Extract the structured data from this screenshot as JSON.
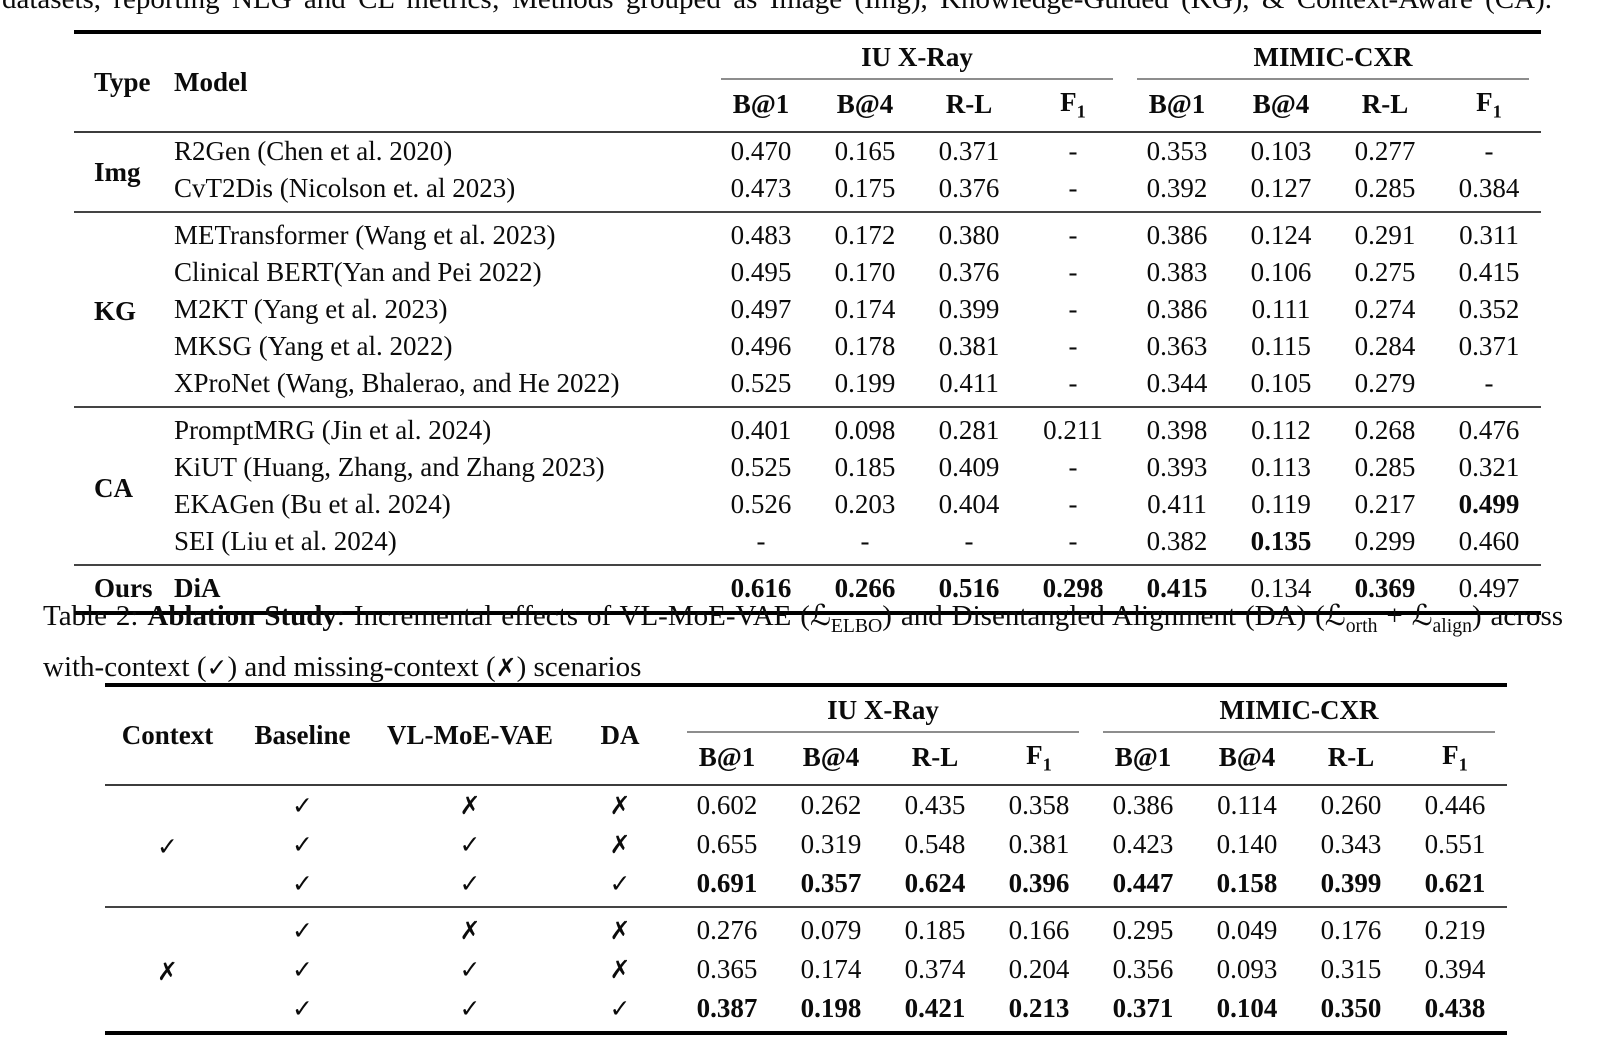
{
  "intro_text": "datasets, reporting NLG and CL metrics; Methods grouped as Image (Img), Knowledge-Guided (KG), & Context-Aware (CA).",
  "datasets": {
    "iu": "IU X-Ray",
    "mimic": "MIMIC-CXR"
  },
  "metrics": {
    "b1": "B@1",
    "b4": "B@4",
    "rl": "R-L",
    "f": "F",
    "f_sub": "1"
  },
  "sym": {
    "check": "✓",
    "cross": "✗"
  },
  "table1": {
    "col_type": "Type",
    "col_model": "Model",
    "sections": [
      {
        "type": "Img",
        "rows": [
          {
            "model": "R2Gen (Chen et al. 2020)",
            "values": [
              "0.470",
              "0.165",
              "0.371",
              "-",
              "0.353",
              "0.103",
              "0.277",
              "-"
            ],
            "bold": []
          },
          {
            "model": "CvT2Dis (Nicolson et. al 2023)",
            "values": [
              "0.473",
              "0.175",
              "0.376",
              "-",
              "0.392",
              "0.127",
              "0.285",
              "0.384"
            ],
            "bold": []
          }
        ]
      },
      {
        "type": "KG",
        "rows": [
          {
            "model": "METransformer (Wang et al. 2023)",
            "values": [
              "0.483",
              "0.172",
              "0.380",
              "-",
              "0.386",
              "0.124",
              "0.291",
              "0.311"
            ],
            "bold": []
          },
          {
            "model": "Clinical BERT(Yan and Pei 2022)",
            "values": [
              "0.495",
              "0.170",
              "0.376",
              "-",
              "0.383",
              "0.106",
              "0.275",
              "0.415"
            ],
            "bold": []
          },
          {
            "model": "M2KT (Yang et al. 2023)",
            "values": [
              "0.497",
              "0.174",
              "0.399",
              "-",
              "0.386",
              "0.111",
              "0.274",
              "0.352"
            ],
            "bold": []
          },
          {
            "model": "MKSG (Yang et al. 2022)",
            "values": [
              "0.496",
              "0.178",
              "0.381",
              "-",
              "0.363",
              "0.115",
              "0.284",
              "0.371"
            ],
            "bold": []
          },
          {
            "model": "XProNet (Wang, Bhalerao, and He 2022)",
            "values": [
              "0.525",
              "0.199",
              "0.411",
              "-",
              "0.344",
              "0.105",
              "0.279",
              "-"
            ],
            "bold": []
          }
        ]
      },
      {
        "type": "CA",
        "rows": [
          {
            "model": "PromptMRG (Jin et al. 2024)",
            "values": [
              "0.401",
              "0.098",
              "0.281",
              "0.211",
              "0.398",
              "0.112",
              "0.268",
              "0.476"
            ],
            "bold": []
          },
          {
            "model": "KiUT (Huang, Zhang, and Zhang 2023)",
            "values": [
              "0.525",
              "0.185",
              "0.409",
              "-",
              "0.393",
              "0.113",
              "0.285",
              "0.321"
            ],
            "bold": []
          },
          {
            "model": "EKAGen (Bu et al. 2024)",
            "values": [
              "0.526",
              "0.203",
              "0.404",
              "-",
              "0.411",
              "0.119",
              "0.217",
              "0.499"
            ],
            "bold": [
              7
            ]
          },
          {
            "model": "SEI (Liu et al. 2024)",
            "values": [
              "-",
              "-",
              "-",
              "-",
              "0.382",
              "0.135",
              "0.299",
              "0.460"
            ],
            "bold": [
              5
            ]
          }
        ]
      },
      {
        "type": "Ours",
        "rows": [
          {
            "model": "DiA",
            "model_bold": true,
            "values": [
              "0.616",
              "0.266",
              "0.516",
              "0.298",
              "0.415",
              "0.134",
              "0.369",
              "0.497"
            ],
            "bold": [
              0,
              1,
              2,
              3,
              4,
              6
            ]
          }
        ]
      }
    ]
  },
  "caption": {
    "label": "Table 2: ",
    "bold": "Ablation Study",
    "seg_a": ": Incremental effects of VL-MoE-VAE (",
    "scriptL": "ℒ",
    "sub_elbo": "ELBO",
    "seg_b": ") and Disentangled Alignment (DA) (",
    "sub_orth": "orth",
    "seg_plus": " + ",
    "sub_align": "align",
    "seg_c": ") across with-context (",
    "check": "✓",
    "seg_d": ") and missing-context (",
    "cross": "✗",
    "seg_e": ") scenarios"
  },
  "table2": {
    "col_context": "Context",
    "col_baseline": "Baseline",
    "col_vlmoe": "VL-MoE-VAE",
    "col_da": "DA",
    "groups": [
      {
        "context": "✓",
        "rows": [
          {
            "baseline": "✓",
            "vlmoe": "✗",
            "da": "✗",
            "values": [
              "0.602",
              "0.262",
              "0.435",
              "0.358",
              "0.386",
              "0.114",
              "0.260",
              "0.446"
            ],
            "bold": []
          },
          {
            "baseline": "✓",
            "vlmoe": "✓",
            "da": "✗",
            "values": [
              "0.655",
              "0.319",
              "0.548",
              "0.381",
              "0.423",
              "0.140",
              "0.343",
              "0.551"
            ],
            "bold": []
          },
          {
            "baseline": "✓",
            "vlmoe": "✓",
            "da": "✓",
            "values": [
              "0.691",
              "0.357",
              "0.624",
              "0.396",
              "0.447",
              "0.158",
              "0.399",
              "0.621"
            ],
            "bold": [
              0,
              1,
              2,
              3,
              4,
              5,
              6,
              7
            ]
          }
        ]
      },
      {
        "context": "✗",
        "rows": [
          {
            "baseline": "✓",
            "vlmoe": "✗",
            "da": "✗",
            "values": [
              "0.276",
              "0.079",
              "0.185",
              "0.166",
              "0.295",
              "0.049",
              "0.176",
              "0.219"
            ],
            "bold": []
          },
          {
            "baseline": "✓",
            "vlmoe": "✓",
            "da": "✗",
            "values": [
              "0.365",
              "0.174",
              "0.374",
              "0.204",
              "0.356",
              "0.093",
              "0.315",
              "0.394"
            ],
            "bold": []
          },
          {
            "baseline": "✓",
            "vlmoe": "✓",
            "da": "✓",
            "values": [
              "0.387",
              "0.198",
              "0.421",
              "0.213",
              "0.371",
              "0.104",
              "0.350",
              "0.438"
            ],
            "bold": [
              0,
              1,
              2,
              3,
              4,
              5,
              6,
              7
            ]
          }
        ]
      }
    ]
  }
}
